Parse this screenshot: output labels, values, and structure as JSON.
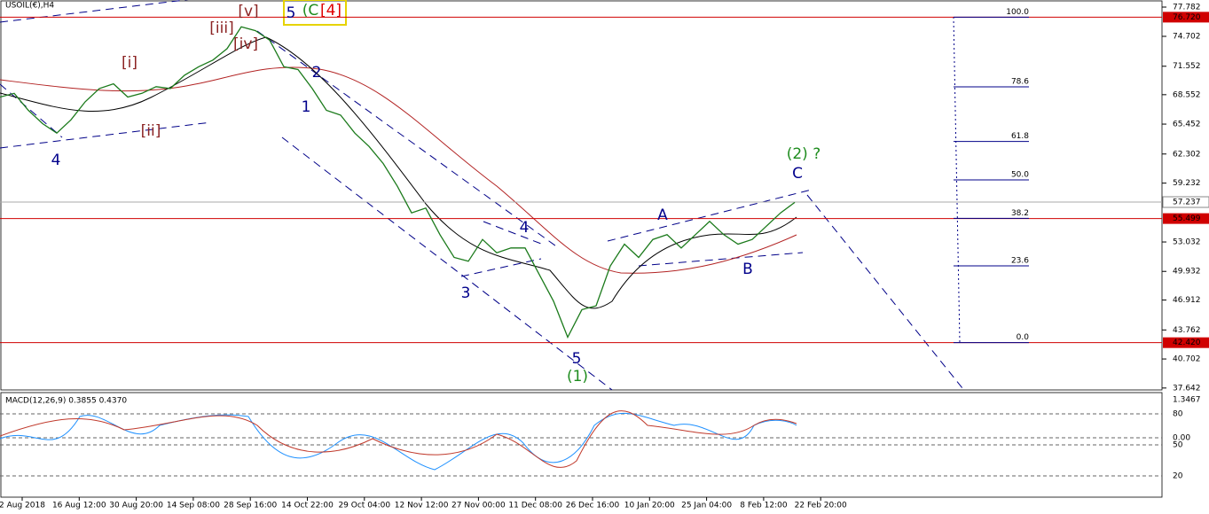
{
  "header": "USOIL(€),H4",
  "chart_data": {
    "type": "line",
    "color": "#1b7a1b",
    "values": [
      68.3,
      68.7,
      66.9,
      65.5,
      64.5,
      65.9,
      67.8,
      69.2,
      69.7,
      68.3,
      68.7,
      69.4,
      69.2,
      70.6,
      71.5,
      72.2,
      73.4,
      75.7,
      75.3,
      74.3,
      71.5,
      71.2,
      69.2,
      66.9,
      66.4,
      64.5,
      63.1,
      61.3,
      58.9,
      56.1,
      56.6,
      53.8,
      51.4,
      51.0,
      53.3,
      51.9,
      52.4,
      52.4,
      49.6,
      46.8,
      43.0,
      45.9,
      46.3,
      50.5,
      52.8,
      51.4,
      53.3,
      53.8,
      52.4,
      53.8,
      55.2,
      53.8,
      52.8,
      53.3,
      54.7,
      56.1,
      57.2
    ],
    "ylim": [
      37.44,
      78.53
    ],
    "yticks": [
      77.782,
      74.702,
      71.552,
      68.552,
      65.452,
      62.302,
      59.232,
      53.032,
      49.932,
      46.912,
      43.762,
      40.702,
      37.642
    ],
    "x_labels": [
      "2 Aug 2018",
      "16 Aug 12:00",
      "30 Aug 20:00",
      "14 Sep 08:00",
      "28 Sep 16:00",
      "14 Oct 22:00",
      "29 Oct 04:00",
      "12 Nov 12:00",
      "27 Nov 00:00",
      "11 Dec 08:00",
      "26 Dec 16:00",
      "10 Jan 20:00",
      "25 Jan 04:00",
      "8 Feb 12:00",
      "22 Feb 20:00"
    ],
    "price_levels": [
      {
        "value": 76.72,
        "label": "76.720"
      },
      {
        "value": 55.499,
        "label": "55.499"
      },
      {
        "value": 42.42,
        "label": "42.420"
      }
    ],
    "current_price": 57.237,
    "fib_levels": [
      {
        "value": 100,
        "label": "100.0"
      },
      {
        "value": 78.6,
        "label": "78.6"
      },
      {
        "value": 61.8,
        "label": "61.8"
      },
      {
        "value": 50,
        "label": "50.0"
      },
      {
        "value": 38.2,
        "label": "38.2"
      },
      {
        "value": 23.6,
        "label": "23.6"
      },
      {
        "value": 0,
        "label": "0.0"
      }
    ]
  },
  "annotations": [
    {
      "text": "5"
    },
    {
      "text": "(C"
    },
    {
      "text": "[4]"
    },
    {
      "text": "[v]"
    },
    {
      "text": "[iii]"
    },
    {
      "text": "[iv]"
    },
    {
      "text": "[i]"
    },
    {
      "text": "[ii]"
    },
    {
      "text": "4"
    },
    {
      "text": "1"
    },
    {
      "text": "2"
    },
    {
      "text": "3"
    },
    {
      "text": "4"
    },
    {
      "text": "5"
    },
    {
      "text": "(1)"
    },
    {
      "text": "A"
    },
    {
      "text": "B"
    },
    {
      "text": "C"
    },
    {
      "text": "(2) ?"
    }
  ],
  "macd": {
    "title": "MACD(12,26,9) 0.3855 0.4370",
    "ticks": [
      1.3467,
      80,
      {
        "value": 0,
        "label": "0.00"
      },
      50,
      20
    ]
  }
}
